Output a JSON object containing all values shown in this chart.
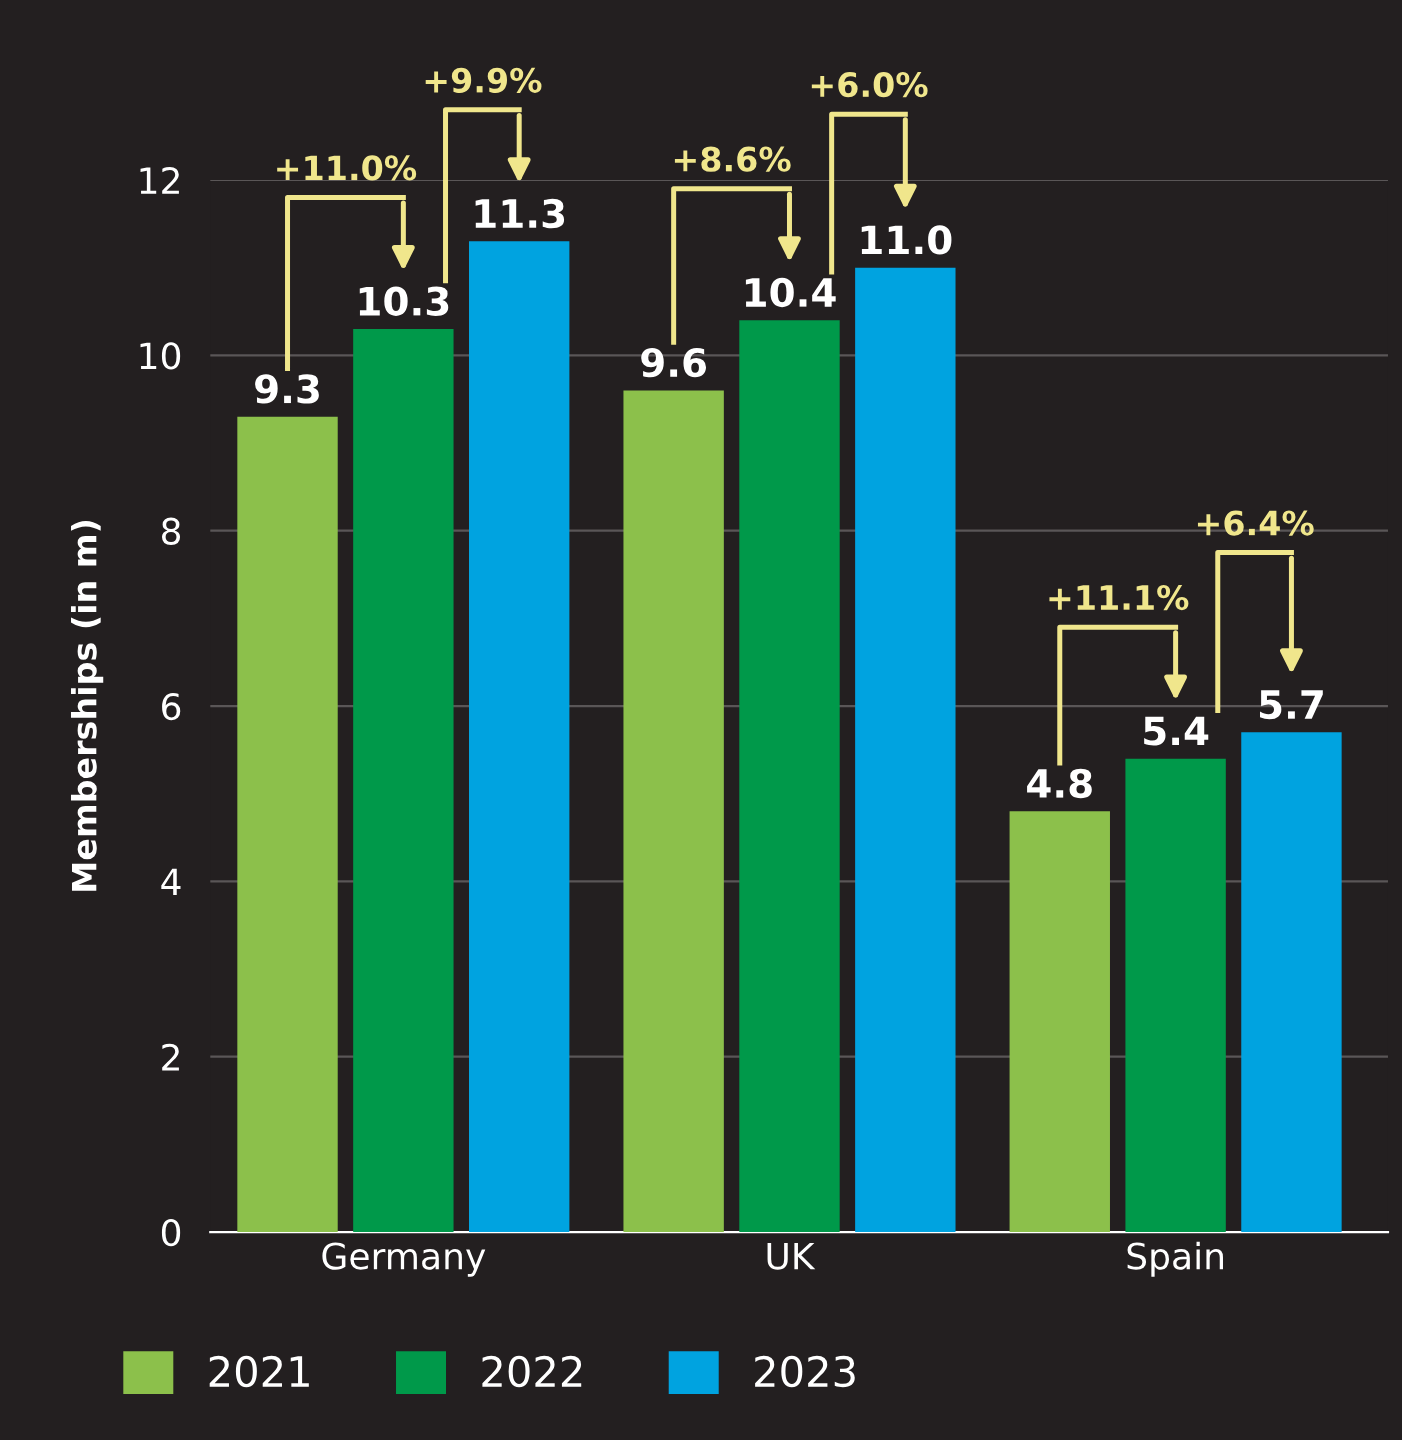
{
  "chart_data": {
    "type": "bar",
    "ylabel": "Memberships (in m)",
    "categories": [
      "Germany",
      "UK",
      "Spain"
    ],
    "series": [
      {
        "name": "2021",
        "color": "#8cc04b",
        "values": [
          9.3,
          9.6,
          4.8
        ],
        "value_labels": [
          "9.3",
          "9.6",
          "4.8"
        ]
      },
      {
        "name": "2022",
        "color": "#00994a",
        "values": [
          10.3,
          10.4,
          5.4
        ],
        "value_labels": [
          "10.3",
          "10.4",
          "5.4"
        ]
      },
      {
        "name": "2023",
        "color": "#00a3e0",
        "values": [
          11.3,
          11.0,
          5.7
        ],
        "value_labels": [
          "11.3",
          "11.0",
          "5.7"
        ]
      }
    ],
    "ylim": [
      0,
      12
    ],
    "yticks": [
      0,
      2,
      4,
      6,
      8,
      10,
      12
    ],
    "grid": "y",
    "legend": "bottom",
    "annotations": [
      "+11.0%",
      "+9.9%",
      "+8.6%",
      "+6.0%",
      "+11.1%",
      "+6.4%"
    ]
  }
}
